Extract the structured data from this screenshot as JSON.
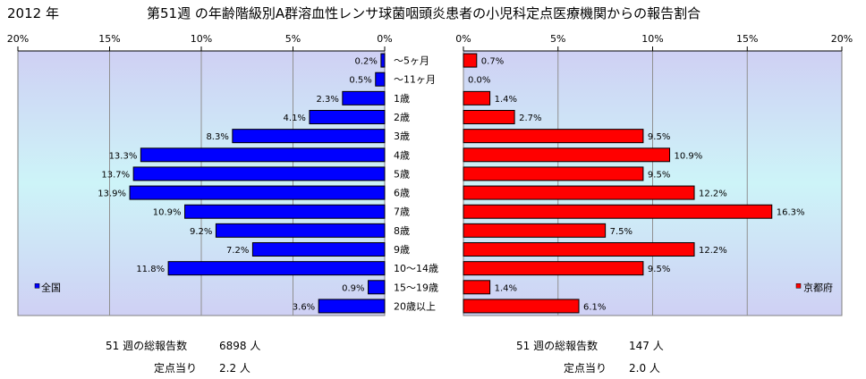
{
  "header": {
    "year": "2012 年",
    "title": "第51週 の年齢階級別A群溶血性レンサ球菌咽頭炎患者の小児科定点医療機関からの報告割合"
  },
  "chart_data": {
    "type": "bar",
    "orientation": "horizontal",
    "categories": [
      "〜5ヶ月",
      "〜11ヶ月",
      "1歳",
      "2歳",
      "3歳",
      "4歳",
      "5歳",
      "6歳",
      "7歳",
      "8歳",
      "9歳",
      "10〜14歳",
      "15〜19歳",
      "20歳以上"
    ],
    "series": [
      {
        "name": "全国",
        "side": "left",
        "color": "#0000ff",
        "values": [
          0.2,
          0.5,
          2.3,
          4.1,
          8.3,
          13.3,
          13.7,
          13.9,
          10.9,
          9.2,
          7.2,
          11.8,
          0.9,
          3.6
        ],
        "labels": [
          "0.2%",
          "0.5%",
          "2.3%",
          "4.1%",
          "8.3%",
          "13.3%",
          "13.7%",
          "13.9%",
          "10.9%",
          "9.2%",
          "7.2%",
          "11.8%",
          "0.9%",
          "3.6%"
        ]
      },
      {
        "name": "京都府",
        "side": "right",
        "color": "#ff0000",
        "values": [
          0.7,
          0.0,
          1.4,
          2.7,
          9.5,
          10.9,
          9.5,
          12.2,
          16.3,
          7.5,
          12.2,
          9.5,
          1.4,
          6.1
        ],
        "labels": [
          "0.7%",
          "0.0%",
          "1.4%",
          "2.7%",
          "9.5%",
          "10.9%",
          "9.5%",
          "12.2%",
          "16.3%",
          "7.5%",
          "12.2%",
          "9.5%",
          "1.4%",
          "6.1%"
        ]
      }
    ],
    "xlim": [
      0,
      20
    ],
    "left_ticks": [
      "20%",
      "15%",
      "10%",
      "5%",
      "0%"
    ],
    "right_ticks": [
      "0%",
      "5%",
      "10%",
      "15%",
      "20%"
    ],
    "grid": true,
    "legend_placement": "bottom-inside"
  },
  "stats": {
    "left": {
      "total_label": "51 週の総報告数",
      "total_value": "6898 人",
      "per_label": "定点当り",
      "per_value": "2.2 人"
    },
    "right": {
      "total_label": "51 週の総報告数",
      "total_value": "147 人",
      "per_label": "定点当り",
      "per_value": "2.0 人"
    }
  }
}
